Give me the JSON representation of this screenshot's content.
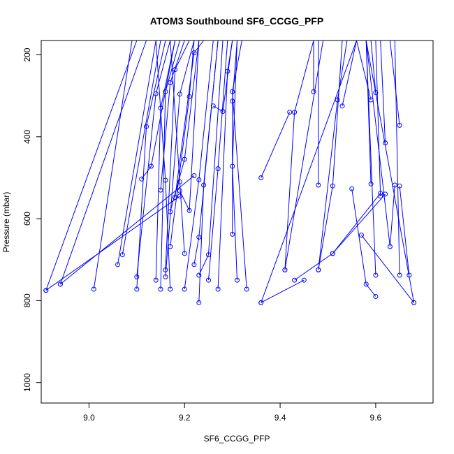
{
  "chart_data": {
    "type": "line",
    "title": "ATOM3 Southbound SF6_CCGG_PFP",
    "xlabel": "SF6_CCGG_PFP",
    "ylabel": "Pressure (mbar)",
    "xlim": [
      8.9,
      9.72
    ],
    "ylim": [
      1050,
      165
    ],
    "y_reversed": true,
    "xticks": [
      "9.0",
      "9.2",
      "9.4",
      "9.6"
    ],
    "yticks": [
      "200",
      "400",
      "600",
      "800",
      "1000"
    ],
    "color": "#0000ff",
    "markers": "open-circle",
    "series": [
      {
        "x": [
          8.91,
          9.1
        ],
        "y": [
          775,
          165
        ]
      },
      {
        "x": [
          8.94,
          9.12
        ],
        "y": [
          760,
          165
        ]
      },
      {
        "x": [
          9.01,
          9.09
        ],
        "y": [
          772,
          165
        ]
      },
      {
        "x": [
          9.06,
          9.14
        ],
        "y": [
          712,
          165
        ]
      },
      {
        "x": [
          9.07,
          9.15
        ],
        "y": [
          688,
          165
        ]
      },
      {
        "x": [
          9.1,
          9.14,
          9.17
        ],
        "y": [
          742,
          295,
          165
        ]
      },
      {
        "x": [
          9.1,
          9.12,
          9.16
        ],
        "y": [
          772,
          375,
          165
        ]
      },
      {
        "x": [
          9.11,
          9.13,
          9.18
        ],
        "y": [
          503,
          472,
          165
        ]
      },
      {
        "x": [
          9.14,
          9.15,
          9.18
        ],
        "y": [
          750,
          330,
          165
        ]
      },
      {
        "x": [
          9.15,
          9.16,
          9.19
        ],
        "y": [
          772,
          290,
          165
        ]
      },
      {
        "x": [
          9.15,
          9.17,
          9.2
        ],
        "y": [
          530,
          268,
          165
        ]
      },
      {
        "x": [
          9.16,
          9.18,
          9.21
        ],
        "y": [
          725,
          236,
          165
        ]
      },
      {
        "x": [
          9.16,
          9.19,
          9.22
        ],
        "y": [
          742,
          296,
          165
        ]
      },
      {
        "x": [
          9.17,
          9.16,
          9.14
        ],
        "y": [
          772,
          506,
          165
        ]
      },
      {
        "x": [
          9.17,
          9.21,
          9.22
        ],
        "y": [
          668,
          302,
          165
        ]
      },
      {
        "x": [
          9.17,
          9.2,
          9.23
        ],
        "y": [
          583,
          455,
          165
        ]
      },
      {
        "x": [
          9.18,
          9.22,
          9.24
        ],
        "y": [
          548,
          195,
          165
        ]
      },
      {
        "x": [
          9.19,
          9.21,
          9.23
        ],
        "y": [
          532,
          580,
          165
        ]
      },
      {
        "x": [
          9.2,
          9.23,
          9.26
        ],
        "y": [
          772,
          505,
          165
        ]
      },
      {
        "x": [
          9.2,
          9.19,
          9.17
        ],
        "y": [
          685,
          510,
          165
        ]
      },
      {
        "x": [
          9.22,
          9.23,
          9.27
        ],
        "y": [
          712,
          645,
          165
        ]
      },
      {
        "x": [
          9.23,
          9.24,
          9.27
        ],
        "y": [
          805,
          518,
          165
        ]
      },
      {
        "x": [
          9.23,
          9.25,
          9.28
        ],
        "y": [
          738,
          688,
          165
        ]
      },
      {
        "x": [
          9.25,
          9.27,
          9.29
        ],
        "y": [
          750,
          478,
          165
        ]
      },
      {
        "x": [
          9.26,
          9.28,
          9.3
        ],
        "y": [
          325,
          338,
          165
        ]
      },
      {
        "x": [
          9.27,
          9.29,
          9.3
        ],
        "y": [
          772,
          240,
          165
        ]
      },
      {
        "x": [
          9.3,
          9.3,
          9.31
        ],
        "y": [
          638,
          313,
          165
        ]
      },
      {
        "x": [
          9.31,
          9.3,
          9.31
        ],
        "y": [
          750,
          472,
          165
        ]
      },
      {
        "x": [
          9.33,
          9.3,
          9.32
        ],
        "y": [
          772,
          290,
          165
        ]
      },
      {
        "x": [
          8.91,
          9.19
        ],
        "y": [
          775,
          545
        ]
      },
      {
        "x": [
          8.94,
          9.22
        ],
        "y": [
          760,
          495
        ]
      },
      {
        "x": [
          9.36,
          9.42
        ],
        "y": [
          500,
          340
        ]
      },
      {
        "x": [
          9.36,
          9.56
        ],
        "y": [
          805,
          165
        ]
      },
      {
        "x": [
          9.41,
          9.43,
          9.47
        ],
        "y": [
          725,
          340,
          165
        ]
      },
      {
        "x": [
          9.41,
          9.49
        ],
        "y": [
          725,
          165
        ]
      },
      {
        "x": [
          9.43,
          9.51,
          9.62
        ],
        "y": [
          750,
          685,
          540
        ]
      },
      {
        "x": [
          9.36,
          9.45
        ],
        "y": [
          805,
          750
        ]
      },
      {
        "x": [
          9.47,
          9.47
        ],
        "y": [
          290,
          165
        ]
      },
      {
        "x": [
          9.48,
          9.48
        ],
        "y": [
          518,
          165
        ]
      },
      {
        "x": [
          9.48,
          9.52,
          9.54
        ],
        "y": [
          725,
          310,
          165
        ]
      },
      {
        "x": [
          9.48,
          9.51,
          9.53
        ],
        "y": [
          725,
          520,
          165
        ]
      },
      {
        "x": [
          9.51,
          9.61
        ],
        "y": [
          685,
          538
        ]
      },
      {
        "x": [
          9.55,
          9.58,
          9.6
        ],
        "y": [
          527,
          760,
          790
        ]
      },
      {
        "x": [
          9.53,
          9.56
        ],
        "y": [
          325,
          165
        ]
      },
      {
        "x": [
          9.59,
          9.58
        ],
        "y": [
          515,
          165
        ]
      },
      {
        "x": [
          9.59,
          9.56
        ],
        "y": [
          310,
          165
        ]
      },
      {
        "x": [
          9.6,
          9.58
        ],
        "y": [
          738,
          165
        ]
      },
      {
        "x": [
          9.6,
          9.59
        ],
        "y": [
          292,
          165
        ]
      },
      {
        "x": [
          9.61,
          9.6
        ],
        "y": [
          545,
          165
        ]
      },
      {
        "x": [
          9.62,
          9.61
        ],
        "y": [
          415,
          165
        ]
      },
      {
        "x": [
          9.64,
          9.63,
          9.58
        ],
        "y": [
          518,
          668,
          165
        ]
      },
      {
        "x": [
          9.65,
          9.64
        ],
        "y": [
          738,
          165
        ]
      },
      {
        "x": [
          9.65,
          9.63
        ],
        "y": [
          372,
          165
        ]
      },
      {
        "x": [
          9.67,
          9.65
        ],
        "y": [
          738,
          520
        ]
      },
      {
        "x": [
          9.68,
          9.57
        ],
        "y": [
          805,
          640
        ]
      },
      {
        "x": [
          9.58,
          9.68
        ],
        "y": [
          165,
          805
        ]
      }
    ]
  }
}
